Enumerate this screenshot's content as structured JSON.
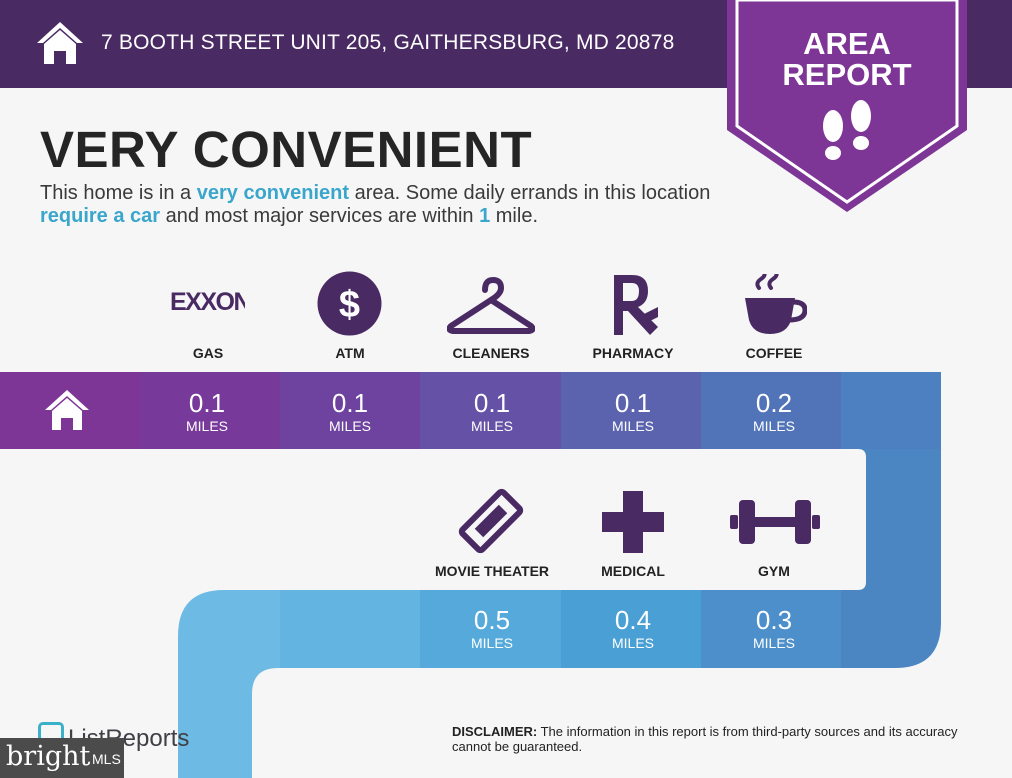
{
  "header": {
    "address": "7 BOOTH STREET UNIT 205, GAITHERSBURG, MD 20878",
    "home_icon": "house-icon"
  },
  "badge": {
    "line1": "AREA",
    "line2": "REPORT",
    "icon": "footprints-icon"
  },
  "headline": "VERY CONVENIENT",
  "description": {
    "p1": "This home is in a ",
    "h1": "very convenient",
    "p2": " area. Some daily errands in this location ",
    "h2": "require a car",
    "p3": " and most major services are within ",
    "h3": "1",
    "p4": " mile."
  },
  "top_row": [
    {
      "label": "GAS",
      "icon": "exxon-logo",
      "logo_text": "EXXON",
      "value": "0.1",
      "unit": "MILES"
    },
    {
      "label": "ATM",
      "icon": "dollar-icon",
      "value": "0.1",
      "unit": "MILES"
    },
    {
      "label": "CLEANERS",
      "icon": "hanger-icon",
      "value": "0.1",
      "unit": "MILES"
    },
    {
      "label": "PHARMACY",
      "icon": "rx-icon",
      "value": "0.1",
      "unit": "MILES"
    },
    {
      "label": "COFFEE",
      "icon": "coffee-cup-icon",
      "value": "0.2",
      "unit": "MILES"
    }
  ],
  "bottom_row": [
    {
      "label": "MOVIE THEATER",
      "icon": "ticket-icon",
      "value": "0.5",
      "unit": "MILES"
    },
    {
      "label": "MEDICAL",
      "icon": "medical-cross-icon",
      "value": "0.4",
      "unit": "MILES"
    },
    {
      "label": "GYM",
      "icon": "dumbbell-icon",
      "value": "0.3",
      "unit": "MILES"
    }
  ],
  "footer": {
    "brand": "ListReports",
    "disclaimer_label": "DISCLAIMER:",
    "disclaimer_text": " The information in this report is from third-party sources and its accuracy cannot be guaranteed.",
    "watermark_1": "bright",
    "watermark_2": "MLS"
  },
  "colors": {
    "purple_dark": "#4a2a63",
    "accent_purple": "#7d3596",
    "accent_blue": "#3aa6cc"
  }
}
